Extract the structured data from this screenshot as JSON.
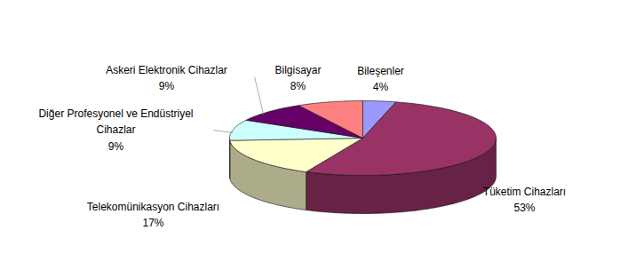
{
  "chart_data": {
    "type": "pie",
    "categories": [
      "Bileşenler",
      "Tüketim Cihazları",
      "Telekomünikasyon Cihazları",
      "Diğer Profesyonel ve Endüstriyel Cihazlar",
      "Askeri Elektronik Cihazlar",
      "Bilgisayar"
    ],
    "values": [
      4,
      53,
      17,
      9,
      9,
      8
    ],
    "value_labels": [
      "4%",
      "53%",
      "17%",
      "9%",
      "9%",
      "8%"
    ],
    "colors": [
      "#9999ff",
      "#993366",
      "#ffffcc",
      "#ccffff",
      "#660066",
      "#ff8080"
    ],
    "data_labels": true
  }
}
